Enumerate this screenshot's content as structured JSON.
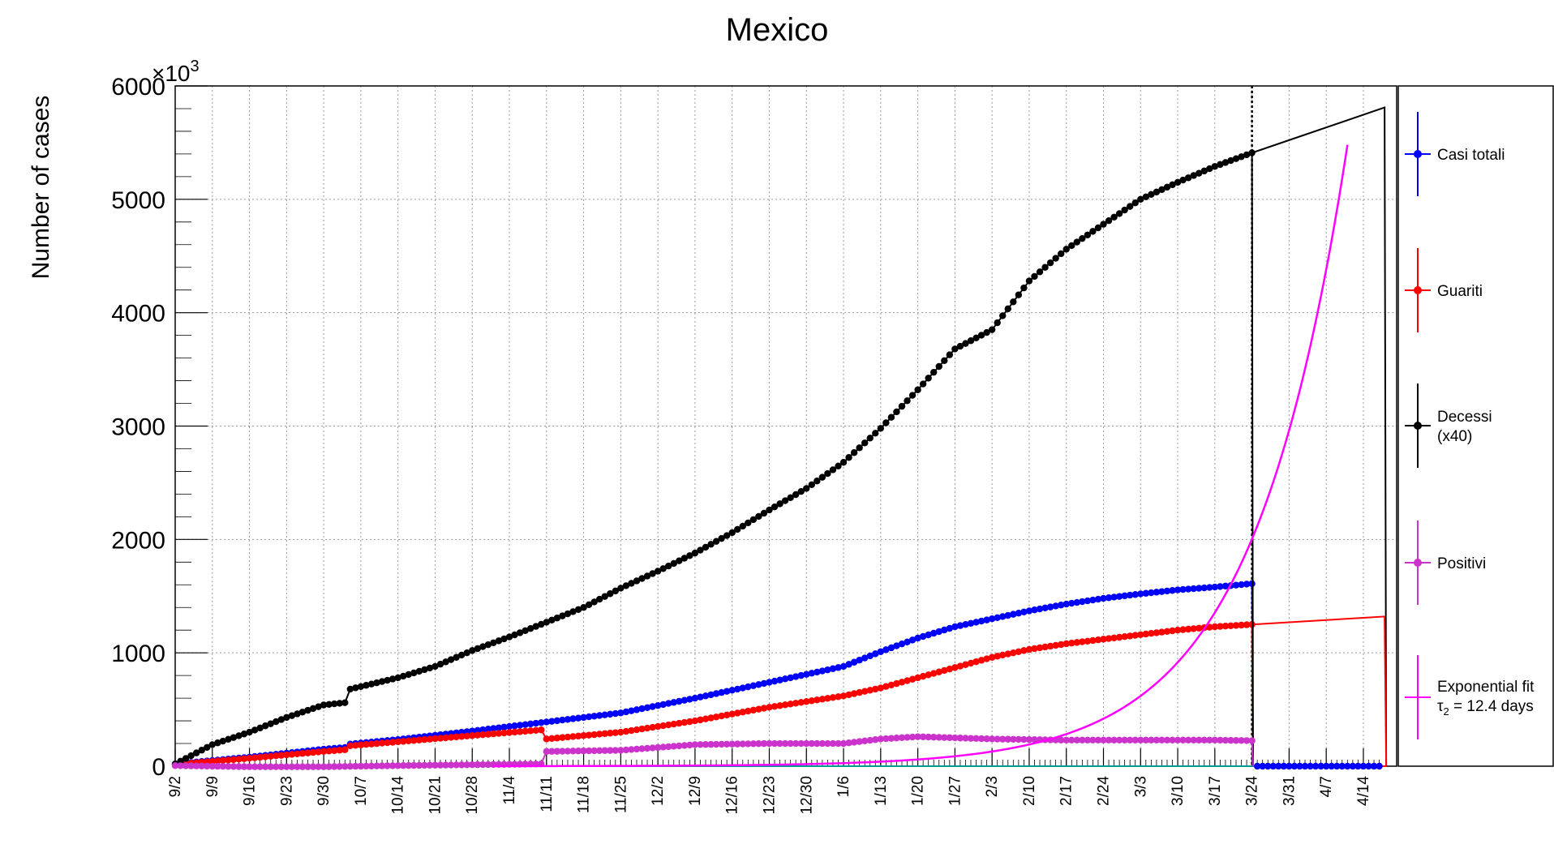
{
  "chart_data": {
    "type": "line",
    "title": "Mexico",
    "xlabel": "",
    "ylabel": "Number of cases",
    "y_multiplier_label": "×10",
    "y_multiplier_exponent": "3",
    "ylim": [
      0,
      6000
    ],
    "xlim_days": [
      0,
      227
    ],
    "grid": true,
    "legend_position": "right",
    "x_ticks": [
      "9/2",
      "9/9",
      "9/16",
      "9/23",
      "9/30",
      "10/7",
      "10/14",
      "10/21",
      "10/28",
      "11/4",
      "11/11",
      "11/18",
      "11/25",
      "12/2",
      "12/9",
      "12/16",
      "12/23",
      "12/30",
      "1/6",
      "1/13",
      "1/20",
      "1/27",
      "2/3",
      "2/10",
      "2/17",
      "2/24",
      "3/3",
      "3/10",
      "3/17",
      "3/24",
      "3/31",
      "4/7",
      "4/14"
    ],
    "y_ticks": [
      0,
      1000,
      2000,
      3000,
      4000,
      5000,
      6000
    ],
    "vertical_marker_x": "3/24",
    "series": [
      {
        "name": "Casi totali",
        "color": "#0000ff",
        "marker": "dot",
        "x": [
          "9/2",
          "9/16",
          "9/30",
          "10/4",
          "10/5",
          "10/14",
          "10/28",
          "11/11",
          "11/25",
          "12/9",
          "12/23",
          "1/6",
          "1/13",
          "1/20",
          "1/27",
          "2/3",
          "2/10",
          "2/17",
          "2/24",
          "3/3",
          "3/10",
          "3/17",
          "3/24"
        ],
        "values": [
          20,
          80,
          150,
          165,
          195,
          235,
          310,
          390,
          470,
          600,
          740,
          880,
          1010,
          1130,
          1230,
          1300,
          1370,
          1430,
          1480,
          1520,
          1555,
          1580,
          1610
        ]
      },
      {
        "name": "Guariti",
        "color": "#ff0000",
        "marker": "dot",
        "x": [
          "9/2",
          "9/16",
          "9/30",
          "10/4",
          "10/5",
          "10/14",
          "10/28",
          "11/10",
          "11/11",
          "11/25",
          "12/9",
          "12/23",
          "1/6",
          "1/13",
          "1/20",
          "1/27",
          "2/3",
          "2/10",
          "2/17",
          "2/24",
          "3/3",
          "3/10",
          "3/17",
          "3/24"
        ],
        "values": [
          15,
          70,
          130,
          145,
          180,
          215,
          270,
          320,
          240,
          300,
          400,
          520,
          620,
          690,
          780,
          870,
          960,
          1030,
          1080,
          1120,
          1160,
          1200,
          1230,
          1250
        ]
      },
      {
        "name": "Decessi\n(x40)",
        "color": "#000000",
        "marker": "dot",
        "x": [
          "9/2",
          "9/9",
          "9/16",
          "9/23",
          "9/30",
          "10/4",
          "10/5",
          "10/14",
          "10/21",
          "10/28",
          "11/4",
          "11/11",
          "11/18",
          "11/25",
          "12/2",
          "12/9",
          "12/16",
          "12/23",
          "12/30",
          "1/6",
          "1/13",
          "1/20",
          "1/27",
          "2/3",
          "2/10",
          "2/17",
          "2/24",
          "3/3",
          "3/10",
          "3/17",
          "3/24"
        ],
        "values": [
          20,
          190,
          300,
          430,
          540,
          560,
          680,
          780,
          880,
          1020,
          1140,
          1270,
          1400,
          1570,
          1720,
          1880,
          2060,
          2260,
          2450,
          2680,
          2980,
          3320,
          3680,
          3850,
          4280,
          4560,
          4780,
          5000,
          5150,
          5290,
          5410
        ]
      },
      {
        "name": "Positivi",
        "color": "#cc33cc",
        "marker": "dot",
        "x": [
          "9/2",
          "9/16",
          "9/30",
          "10/14",
          "11/10",
          "11/11",
          "11/25",
          "12/9",
          "12/23",
          "1/6",
          "1/13",
          "1/20",
          "1/27",
          "2/3",
          "2/10",
          "2/17",
          "2/24",
          "3/3",
          "3/10",
          "3/17",
          "3/24"
        ],
        "values": [
          5,
          -5,
          -5,
          5,
          20,
          130,
          140,
          190,
          200,
          200,
          240,
          260,
          250,
          240,
          235,
          230,
          230,
          230,
          230,
          230,
          225
        ]
      },
      {
        "name": "Exponential fit",
        "name_line2": "τ",
        "name_line2_sub": "2",
        "name_line2_rest": " = 12.4 days",
        "color": "#ff00ff",
        "marker": "none",
        "doubling_days": 12.4,
        "end_x": "4/11",
        "end_value": 5480
      }
    ],
    "tail_line": {
      "color": "#000000",
      "x": [
        "3/24",
        "4/18"
      ],
      "values": [
        5410,
        5810
      ]
    },
    "tail_red": {
      "color": "#ff0000",
      "x": [
        "3/24",
        "4/18"
      ],
      "values": [
        1250,
        1320
      ]
    }
  }
}
